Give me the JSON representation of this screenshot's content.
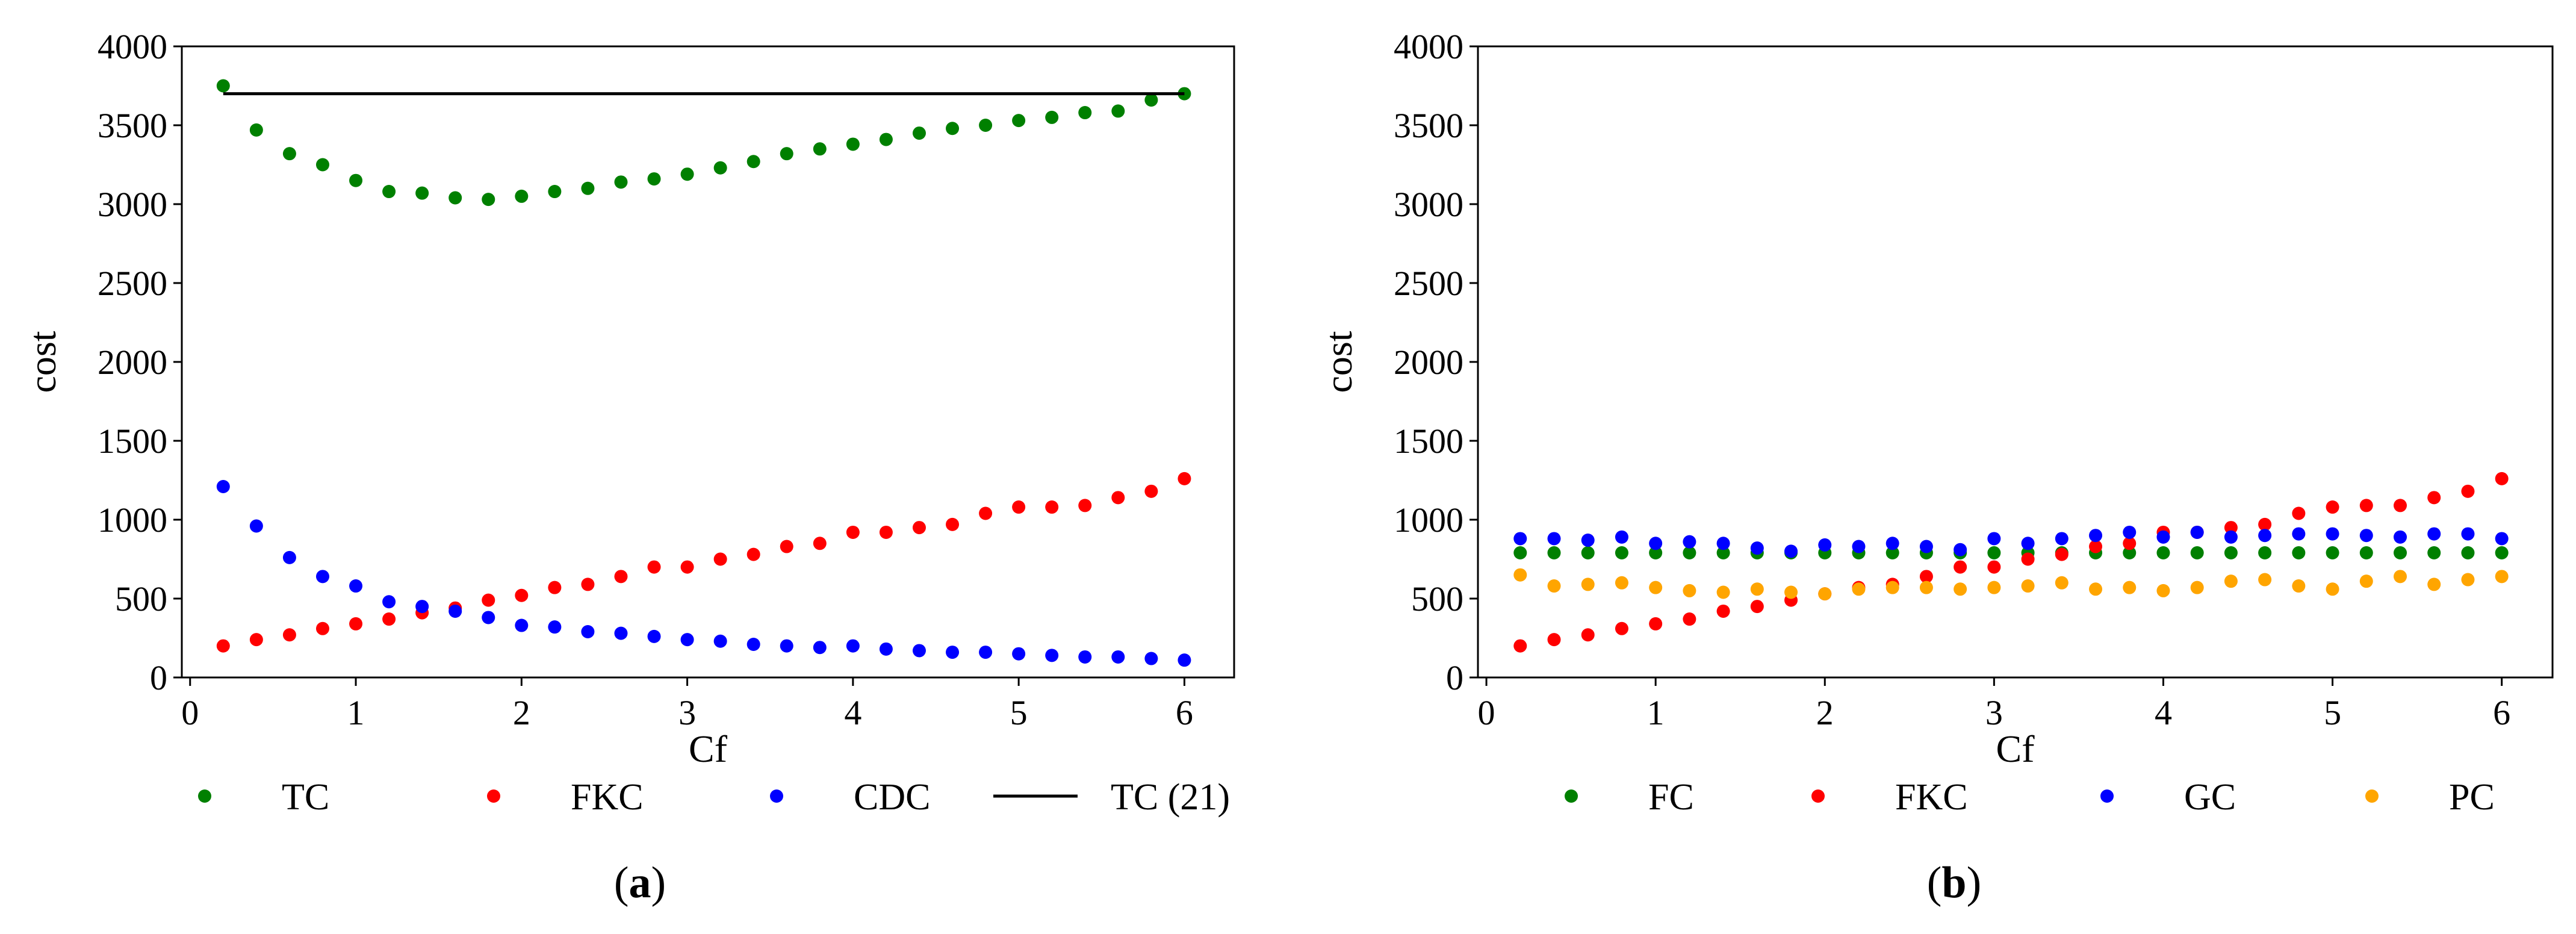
{
  "chart_data": [
    {
      "id": "a",
      "type": "scatter",
      "caption": {
        "open": "(",
        "letter": "a",
        "close": ")"
      },
      "xlabel": "Cf",
      "ylabel": "cost",
      "xlim": [
        -0.05,
        6.3
      ],
      "ylim": [
        0,
        4000
      ],
      "xticks": [
        0,
        1,
        2,
        3,
        4,
        5,
        6
      ],
      "yticks": [
        0,
        500,
        1000,
        1500,
        2000,
        2500,
        3000,
        3500,
        4000
      ],
      "x": [
        0.2,
        0.4,
        0.6,
        0.8,
        1.0,
        1.2,
        1.4,
        1.6,
        1.8,
        2.0,
        2.2,
        2.4,
        2.6,
        2.8,
        3.0,
        3.2,
        3.4,
        3.6,
        3.8,
        4.0,
        4.2,
        4.4,
        4.6,
        4.8,
        5.0,
        5.2,
        5.4,
        5.6,
        5.8,
        6.0
      ],
      "series": [
        {
          "name": "TC",
          "color": "#008000",
          "kind": "points",
          "values": [
            3750,
            3470,
            3320,
            3250,
            3150,
            3080,
            3070,
            3040,
            3030,
            3050,
            3080,
            3100,
            3140,
            3160,
            3190,
            3230,
            3270,
            3320,
            3350,
            3380,
            3410,
            3450,
            3480,
            3500,
            3530,
            3550,
            3580,
            3590,
            3660,
            3700
          ]
        },
        {
          "name": "FKC",
          "color": "#ff0000",
          "kind": "points",
          "values": [
            200,
            240,
            270,
            310,
            340,
            370,
            410,
            440,
            490,
            520,
            570,
            590,
            640,
            700,
            700,
            750,
            780,
            830,
            850,
            920,
            920,
            950,
            970,
            1040,
            1080,
            1080,
            1090,
            1140,
            1180,
            1260
          ]
        },
        {
          "name": "CDC",
          "color": "#0000ff",
          "kind": "points",
          "values": [
            1210,
            960,
            760,
            640,
            580,
            480,
            450,
            420,
            380,
            330,
            320,
            290,
            280,
            260,
            240,
            230,
            210,
            200,
            190,
            200,
            180,
            170,
            160,
            160,
            150,
            140,
            130,
            130,
            120,
            110
          ]
        },
        {
          "name": "TC (21)",
          "color": "#000000",
          "kind": "line",
          "line_x": [
            0.2,
            6.0
          ],
          "line_y": [
            3700,
            3700
          ]
        }
      ]
    },
    {
      "id": "b",
      "type": "scatter",
      "caption": {
        "open": "(",
        "letter": "b",
        "close": ")"
      },
      "xlabel": "Cf",
      "ylabel": "cost",
      "xlim": [
        -0.05,
        6.3
      ],
      "ylim": [
        0,
        4000
      ],
      "xticks": [
        0,
        1,
        2,
        3,
        4,
        5,
        6
      ],
      "yticks": [
        0,
        500,
        1000,
        1500,
        2000,
        2500,
        3000,
        3500,
        4000
      ],
      "x": [
        0.2,
        0.4,
        0.6,
        0.8,
        1.0,
        1.2,
        1.4,
        1.6,
        1.8,
        2.0,
        2.2,
        2.4,
        2.6,
        2.8,
        3.0,
        3.2,
        3.4,
        3.6,
        3.8,
        4.0,
        4.2,
        4.4,
        4.6,
        4.8,
        5.0,
        5.2,
        5.4,
        5.6,
        5.8,
        6.0
      ],
      "series": [
        {
          "name": "FC",
          "color": "#008000",
          "kind": "points",
          "values": [
            790,
            790,
            790,
            790,
            790,
            790,
            790,
            790,
            790,
            790,
            790,
            790,
            790,
            790,
            790,
            790,
            790,
            790,
            790,
            790,
            790,
            790,
            790,
            790,
            790,
            790,
            790,
            790,
            790,
            790
          ]
        },
        {
          "name": "FKC",
          "color": "#ff0000",
          "kind": "points",
          "values": [
            200,
            240,
            270,
            310,
            340,
            370,
            420,
            450,
            490,
            530,
            570,
            590,
            640,
            700,
            700,
            750,
            780,
            830,
            850,
            920,
            920,
            950,
            970,
            1040,
            1080,
            1090,
            1090,
            1140,
            1180,
            1260
          ]
        },
        {
          "name": "GC",
          "color": "#0000ff",
          "kind": "points",
          "values": [
            880,
            880,
            870,
            890,
            850,
            860,
            850,
            820,
            800,
            840,
            830,
            850,
            830,
            810,
            880,
            850,
            880,
            900,
            920,
            890,
            920,
            890,
            900,
            910,
            910,
            900,
            890,
            910,
            910,
            880
          ]
        },
        {
          "name": "PC",
          "color": "#ffa500",
          "kind": "points",
          "values": [
            650,
            580,
            590,
            600,
            570,
            550,
            540,
            560,
            540,
            530,
            560,
            570,
            570,
            560,
            570,
            580,
            600,
            560,
            570,
            550,
            570,
            610,
            620,
            580,
            560,
            610,
            640,
            590,
            620,
            640
          ]
        }
      ]
    }
  ]
}
